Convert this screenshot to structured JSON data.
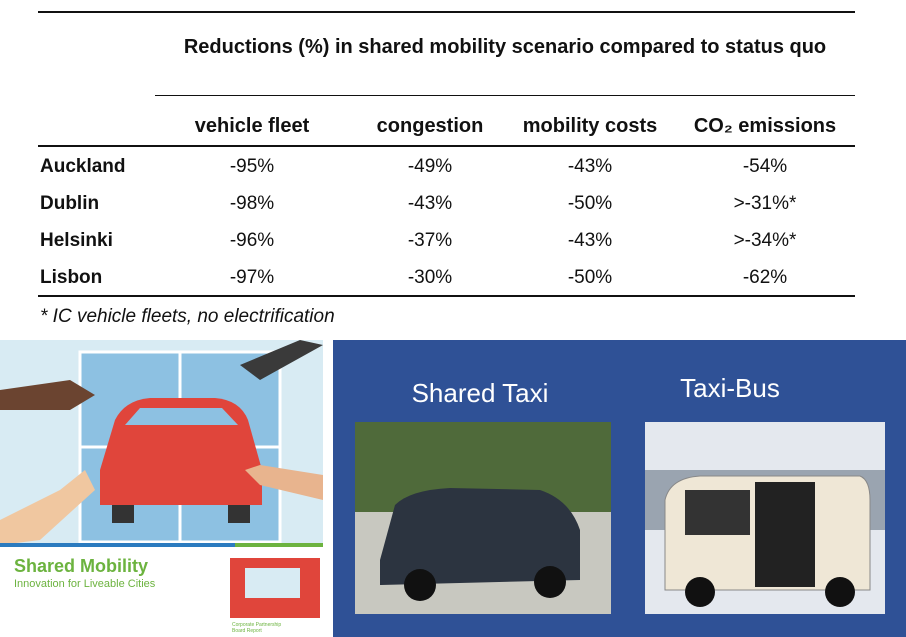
{
  "table": {
    "title": "Reductions (%) in shared mobility scenario compared to status quo",
    "columns": [
      "vehicle fleet",
      "congestion",
      "mobility costs",
      "CO₂ emissions"
    ],
    "rows": [
      [
        "Auckland",
        "-95%",
        "-49%",
        "-43%",
        "-54%"
      ],
      [
        "Dublin",
        "-98%",
        "-43%",
        "-50%",
        ">-31%*"
      ],
      [
        "Helsinki",
        "-96%",
        "-37%",
        "-43%",
        ">-34%*"
      ],
      [
        "Lisbon",
        "-97%",
        "-30%",
        "-50%",
        "-62%"
      ]
    ],
    "footnote": "* IC vehicle fleets, no electrification"
  },
  "left_panel": {
    "title": "Shared Mobility",
    "subtitle": "Innovation for Liveable Cities",
    "small_print": "Corporate Partnership Board Report"
  },
  "right_panel": {
    "labels": [
      "Shared Taxi",
      "Taxi-Bus"
    ]
  }
}
